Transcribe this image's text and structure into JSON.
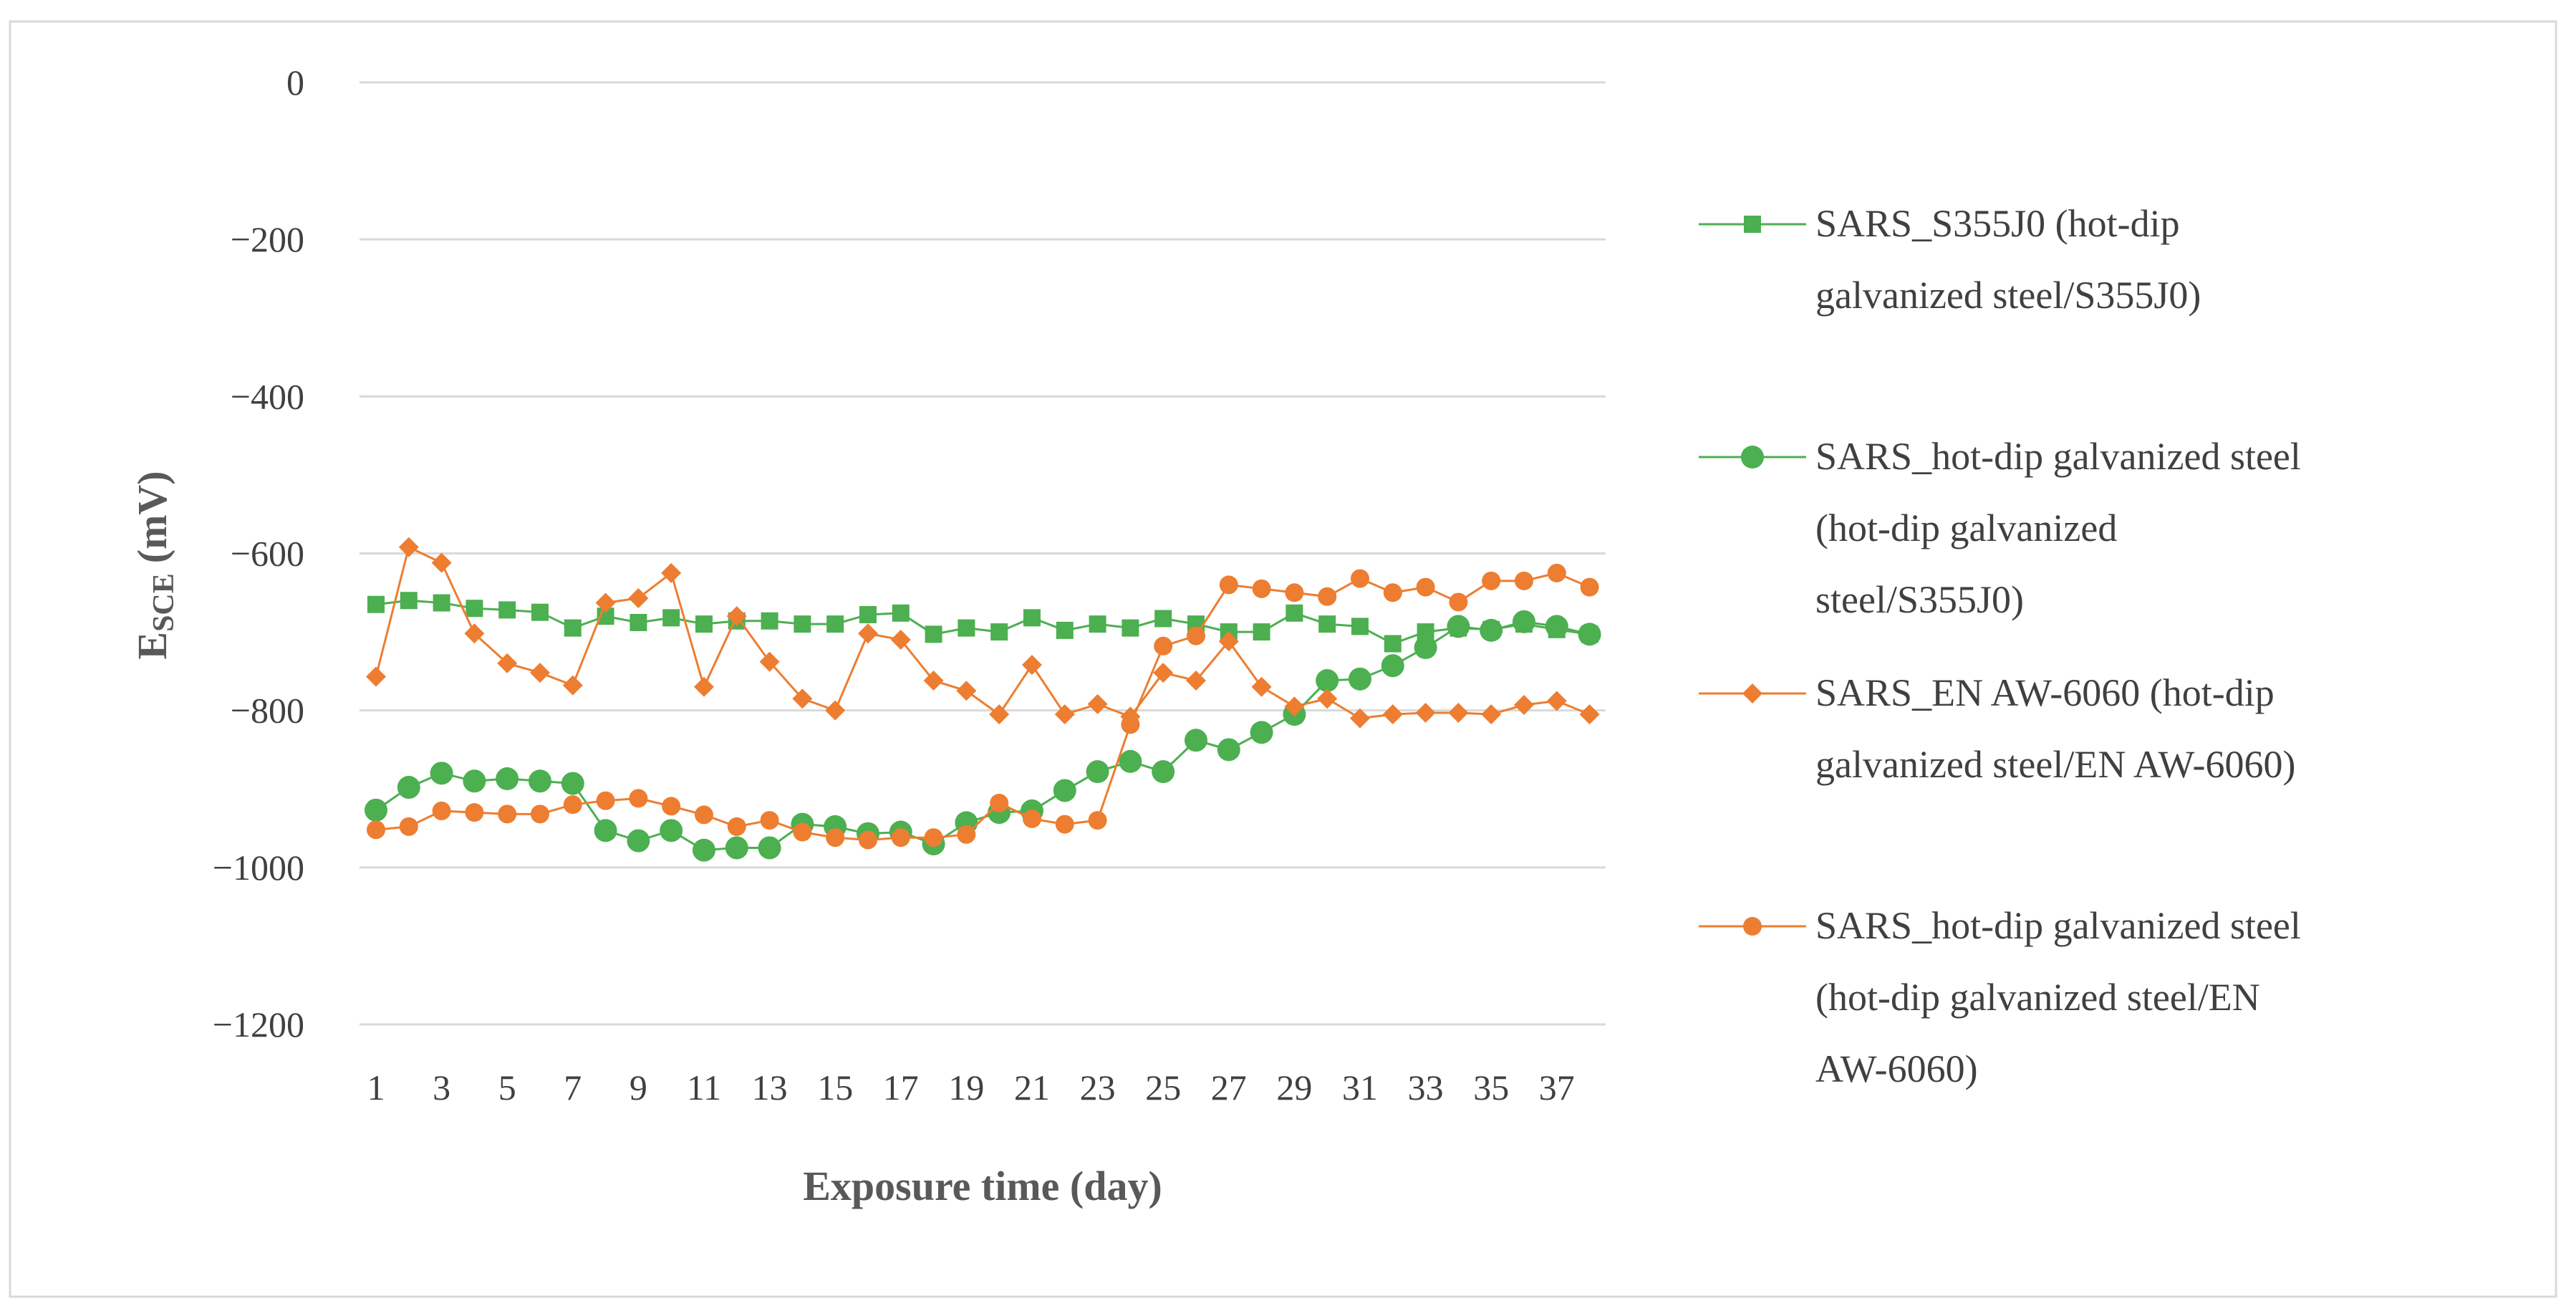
{
  "chart_data": {
    "type": "line",
    "title": "",
    "xlabel": "Exposure time (day)",
    "ylabel_main": "E",
    "ylabel_sub": "SCE",
    "ylabel_unit": "(mV)",
    "ylim": [
      -1200,
      0
    ],
    "y_ticks": [
      0,
      -200,
      -400,
      -600,
      -800,
      -1000,
      -1200
    ],
    "y_tick_labels": [
      "0",
      "−200",
      "−400",
      "−600",
      "−800",
      "−1000",
      "−1200"
    ],
    "xlim": [
      1,
      38
    ],
    "x_tick_labels": [
      "1",
      "3",
      "5",
      "7",
      "9",
      "11",
      "13",
      "15",
      "17",
      "19",
      "21",
      "23",
      "25",
      "27",
      "29",
      "31",
      "33",
      "35",
      "37"
    ],
    "grid": true,
    "legend_position": "right",
    "series": [
      {
        "name": "SARS_S355J0 (hot-dip galvanized steel/S355J0)",
        "legend_lines": [
          "SARS_S355J0 (hot-dip",
          "galvanized steel/S355J0)"
        ],
        "color": "#4CAF50",
        "marker": "square",
        "values": [
          -665,
          -660,
          -663,
          -670,
          -672,
          -675,
          -695,
          -680,
          -688,
          -682,
          -690,
          -686,
          -686,
          -690,
          -690,
          -678,
          -676,
          -703,
          -695,
          -700,
          -682,
          -698,
          -690,
          -695,
          -683,
          -690,
          -700,
          -700,
          -676,
          -690,
          -693,
          -715,
          -700,
          -695,
          -697,
          -690,
          -697,
          -703
        ]
      },
      {
        "name": "SARS_hot-dip galvanized steel (hot-dip galvanized steel/S355J0)",
        "legend_lines": [
          "SARS_hot-dip galvanized steel",
          "(hot-dip galvanized",
          "steel/S355J0)"
        ],
        "color": "#4CAF50",
        "marker": "circle",
        "values": [
          -927,
          -898,
          -880,
          -890,
          -887,
          -890,
          -893,
          -953,
          -966,
          -953,
          -978,
          -975,
          -975,
          -945,
          -948,
          -957,
          -955,
          -970,
          -943,
          -930,
          -928,
          -902,
          -878,
          -865,
          -878,
          -838,
          -850,
          -828,
          -805,
          -762,
          -760,
          -743,
          -720,
          -693,
          -698,
          -687,
          -693,
          -703
        ]
      },
      {
        "name": "SARS_EN AW-6060 (hot-dip galvanized steel/EN AW-6060)",
        "legend_lines": [
          "SARS_EN AW-6060 (hot-dip",
          "galvanized steel/EN AW-6060)"
        ],
        "color": "#ED7D31",
        "marker": "diamond",
        "values": [
          -757,
          -592,
          -612,
          -702,
          -740,
          -752,
          -768,
          -663,
          -657,
          -625,
          -770,
          -680,
          -738,
          -785,
          -800,
          -702,
          -710,
          -762,
          -775,
          -805,
          -742,
          -805,
          -792,
          -808,
          -752,
          -762,
          -712,
          -770,
          -795,
          -785,
          -810,
          -805,
          -803,
          -803,
          -805,
          -793,
          -788,
          -805
        ]
      },
      {
        "name": "SARS_hot-dip galvanized steel (hot-dip galvanized steel/EN AW-6060)",
        "legend_lines": [
          "SARS_hot-dip galvanized steel",
          "(hot-dip galvanized steel/EN",
          "AW-6060)"
        ],
        "color": "#ED7D31",
        "marker": "circle-small",
        "values": [
          -952,
          -948,
          -928,
          -930,
          -932,
          -932,
          -920,
          -915,
          -912,
          -922,
          -933,
          -948,
          -940,
          -955,
          -962,
          -965,
          -962,
          -962,
          -958,
          -918,
          -938,
          -945,
          -940,
          -818,
          -718,
          -705,
          -640,
          -645,
          -650,
          -655,
          -632,
          -650,
          -643,
          -662,
          -635,
          -635,
          -625,
          -643
        ]
      }
    ]
  }
}
